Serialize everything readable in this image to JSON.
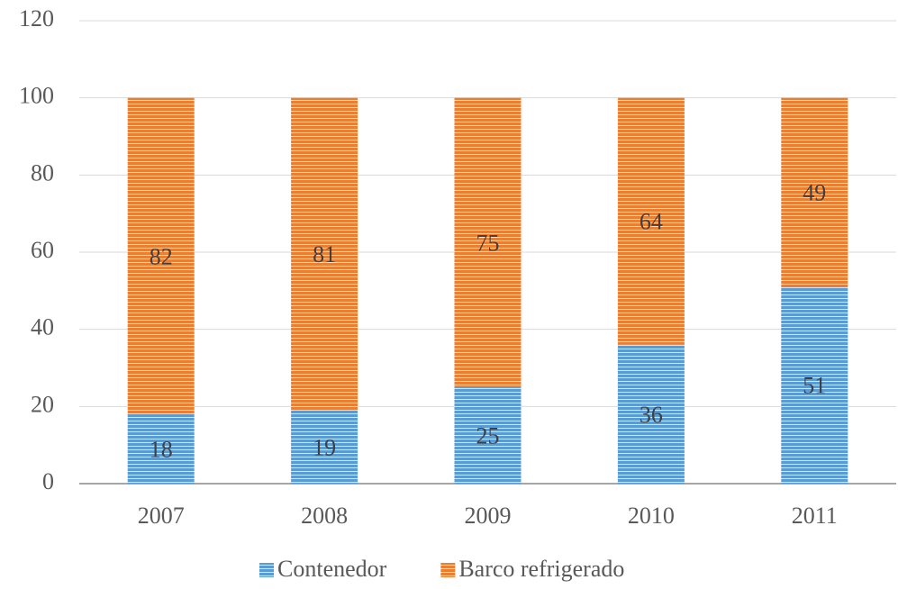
{
  "chart_data": {
    "type": "bar",
    "stacked": true,
    "categories": [
      "2007",
      "2008",
      "2009",
      "2010",
      "2011"
    ],
    "series": [
      {
        "name": "Contenedor",
        "color": "#5b9bd5",
        "values": [
          18,
          19,
          25,
          36,
          51
        ]
      },
      {
        "name": "Barco refrigerado",
        "color": "#ed7d31",
        "values": [
          82,
          81,
          75,
          64,
          49
        ]
      }
    ],
    "ylim": [
      0,
      120
    ],
    "yticks": [
      0,
      20,
      40,
      60,
      80,
      100,
      120
    ],
    "grid": true,
    "legend": "bottom"
  }
}
